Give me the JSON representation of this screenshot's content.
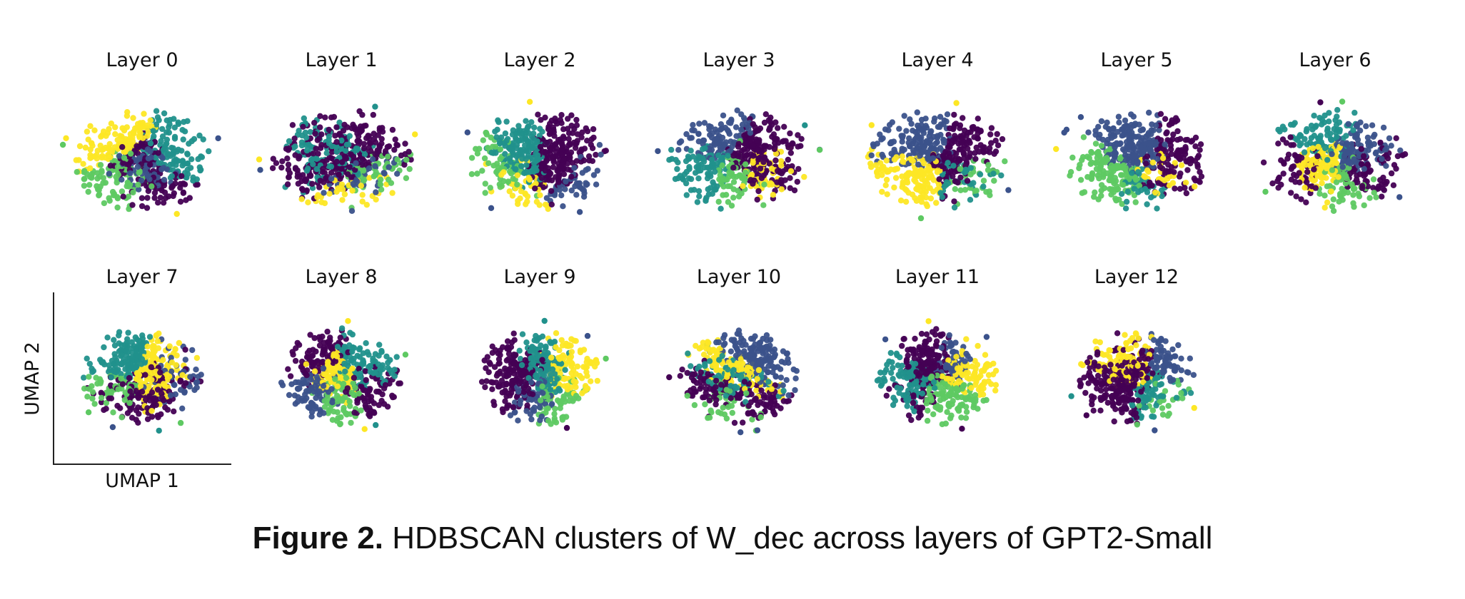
{
  "chart_data": {
    "type": "scatter",
    "panels": [
      {
        "title": "Layer 0"
      },
      {
        "title": "Layer 1"
      },
      {
        "title": "Layer 2"
      },
      {
        "title": "Layer 3"
      },
      {
        "title": "Layer 4"
      },
      {
        "title": "Layer 5"
      },
      {
        "title": "Layer 6"
      },
      {
        "title": "Layer 7"
      },
      {
        "title": "Layer 8"
      },
      {
        "title": "Layer 9"
      },
      {
        "title": "Layer 10"
      },
      {
        "title": "Layer 11"
      },
      {
        "title": "Layer 12"
      }
    ],
    "xlabel": "UMAP 1",
    "ylabel": "UMAP 2",
    "colormap": [
      "#440154",
      "#3b528b",
      "#21918c",
      "#5ec962",
      "#fde725"
    ],
    "grid": false
  },
  "caption": {
    "label": "Figure 2.",
    "text": " HDBSCAN clusters of W_dec across layers of GPT2-Small"
  }
}
